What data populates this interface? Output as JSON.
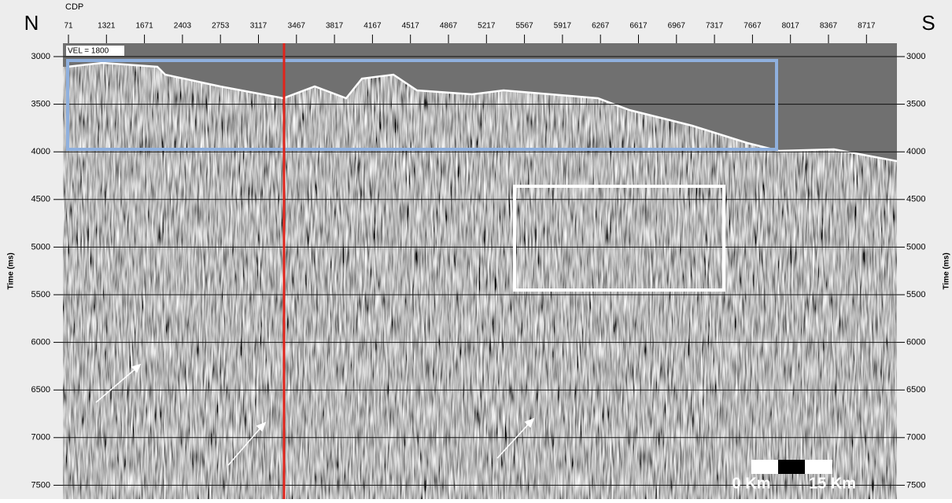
{
  "header": {
    "north": "N",
    "south": "S",
    "cdp_label": "CDP",
    "cdp_ticks": [
      "71",
      "1321",
      "1671",
      "2403",
      "2753",
      "3117",
      "3467",
      "3817",
      "4167",
      "4517",
      "4867",
      "5217",
      "5567",
      "5917",
      "6267",
      "6617",
      "6967",
      "7317",
      "7667",
      "8017",
      "8367",
      "8717"
    ]
  },
  "section": {
    "velocity": "VEL =  1800",
    "time_ticks": [
      "3000",
      "3500",
      "4000",
      "4500",
      "5000",
      "5500",
      "6000",
      "6500",
      "7000",
      "7500"
    ],
    "left_axis_label": "Time (ms)",
    "right_axis_label": "Time (ms)"
  },
  "scale_bar": {
    "start": "0 Km",
    "end": "15 Km"
  }
}
